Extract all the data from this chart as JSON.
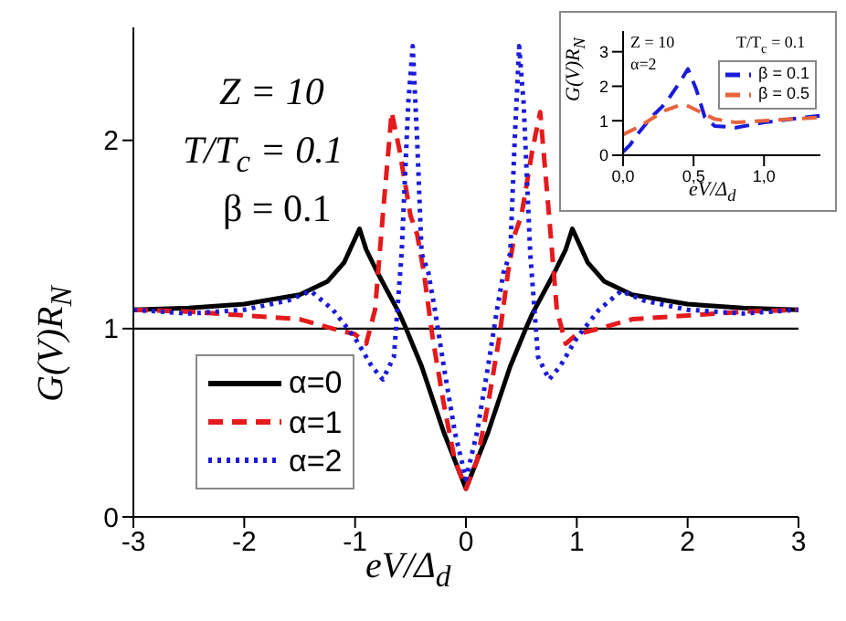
{
  "chart_data": [
    {
      "type": "line",
      "xlabel": "eV/Δ$_{d}$",
      "ylabel": "G(V)R$_{N}$",
      "annotations": [
        "Z = 10",
        "T/T$_{c}$ = 0.1",
        "β  = 0.1"
      ],
      "xlim": [
        -3,
        3
      ],
      "ylim": [
        0,
        2.6
      ],
      "xticks": [
        -3,
        -2,
        -1,
        0,
        1,
        2,
        3
      ],
      "yticks": [
        0,
        1,
        2
      ],
      "legend": "bottom left",
      "ref_lines": [
        {
          "axis": "y",
          "value": 1,
          "color": "#000000"
        }
      ],
      "series": [
        {
          "name": "α=0",
          "color": "#000000",
          "line_style": "solid",
          "x": [
            -3,
            -2.5,
            -2,
            -1.5,
            -1.25,
            -1.1,
            -0.96,
            -0.9,
            -0.8,
            -0.6,
            -0.54,
            -0.4,
            -0.2,
            -0.1,
            0,
            0.1,
            0.2,
            0.4,
            0.54,
            0.6,
            0.8,
            0.9,
            0.96,
            1.1,
            1.25,
            1.5,
            2,
            2.5,
            3
          ],
          "values": [
            1.1,
            1.11,
            1.13,
            1.18,
            1.25,
            1.35,
            1.53,
            1.42,
            1.3,
            1.08,
            1.0,
            0.8,
            0.45,
            0.3,
            0.15,
            0.3,
            0.45,
            0.8,
            1.0,
            1.08,
            1.3,
            1.42,
            1.53,
            1.35,
            1.25,
            1.18,
            1.13,
            1.11,
            1.1
          ]
        },
        {
          "name": "α=1",
          "color": "#e41a1c",
          "line_style": "dashed",
          "x": [
            -3,
            -2.5,
            -2,
            -1.5,
            -1.2,
            -1.0,
            -0.9,
            -0.82,
            -0.75,
            -0.67,
            -0.6,
            -0.5,
            -0.44,
            -0.38,
            -0.3,
            -0.2,
            -0.1,
            0,
            0.1,
            0.2,
            0.3,
            0.38,
            0.44,
            0.5,
            0.6,
            0.67,
            0.75,
            0.82,
            0.9,
            1.0,
            1.2,
            1.5,
            2,
            2.5,
            3
          ],
          "values": [
            1.1,
            1.09,
            1.07,
            1.05,
            1.0,
            0.97,
            0.92,
            1.1,
            1.6,
            2.15,
            1.95,
            1.6,
            1.5,
            1.3,
            0.95,
            0.6,
            0.3,
            0.15,
            0.3,
            0.6,
            0.95,
            1.3,
            1.5,
            1.6,
            1.95,
            2.15,
            1.6,
            1.1,
            0.92,
            0.97,
            1.0,
            1.05,
            1.07,
            1.09,
            1.1
          ]
        },
        {
          "name": "α=2",
          "color": "#1a1adb",
          "line_style": "dotted",
          "x": [
            -3,
            -2.5,
            -2,
            -1.6,
            -1.4,
            -1.2,
            -1.0,
            -0.85,
            -0.75,
            -0.65,
            -0.58,
            -0.52,
            -0.48,
            -0.44,
            -0.4,
            -0.34,
            -0.28,
            -0.2,
            -0.1,
            0,
            0.1,
            0.2,
            0.28,
            0.34,
            0.4,
            0.44,
            0.48,
            0.52,
            0.58,
            0.65,
            0.75,
            0.85,
            1.0,
            1.2,
            1.4,
            1.6,
            2,
            2.5,
            3
          ],
          "values": [
            1.1,
            1.08,
            1.1,
            1.15,
            1.2,
            1.1,
            0.95,
            0.8,
            0.73,
            0.85,
            1.4,
            2.2,
            2.5,
            2.0,
            1.4,
            1.3,
            1.1,
            0.8,
            0.45,
            0.2,
            0.45,
            0.8,
            1.1,
            1.3,
            1.4,
            2.0,
            2.5,
            2.2,
            1.4,
            0.85,
            0.73,
            0.8,
            0.95,
            1.1,
            1.2,
            1.15,
            1.1,
            1.08,
            1.1
          ]
        }
      ]
    },
    {
      "type": "line",
      "xlabel": "eV/Δ$_{d}$",
      "ylabel": "G(V)R$_{N}$",
      "annotations": [
        "Z = 10",
        "α=2",
        "T/T$_{c}$ = 0.1"
      ],
      "xlim": [
        0,
        1.4
      ],
      "ylim": [
        0,
        3.6
      ],
      "xticks": [
        {
          "value": 0,
          "label": "0,0"
        },
        {
          "value": 0.5,
          "label": "0,5"
        },
        {
          "value": 1,
          "label": "1,0"
        }
      ],
      "yticks": [
        0,
        1,
        2,
        3
      ],
      "legend": "top right",
      "series": [
        {
          "name": "β = 0.1",
          "color": "#1a1adb",
          "line_style": "dashed",
          "x": [
            0,
            0.05,
            0.1,
            0.2,
            0.3,
            0.4,
            0.46,
            0.52,
            0.58,
            0.65,
            0.8,
            1.0,
            1.2,
            1.4
          ],
          "values": [
            0.1,
            0.3,
            0.6,
            1.1,
            1.5,
            2.1,
            2.5,
            1.9,
            1.1,
            0.85,
            0.8,
            0.95,
            1.05,
            1.15
          ]
        },
        {
          "name": "β = 0.5",
          "color": "#e8643c",
          "line_style": "dashed",
          "x": [
            0,
            0.1,
            0.2,
            0.3,
            0.4,
            0.45,
            0.5,
            0.65,
            0.8,
            1.0,
            1.2,
            1.4
          ],
          "values": [
            0.6,
            0.8,
            1.05,
            1.3,
            1.45,
            1.45,
            1.35,
            1.05,
            0.95,
            1.0,
            1.05,
            1.1
          ]
        }
      ]
    }
  ]
}
